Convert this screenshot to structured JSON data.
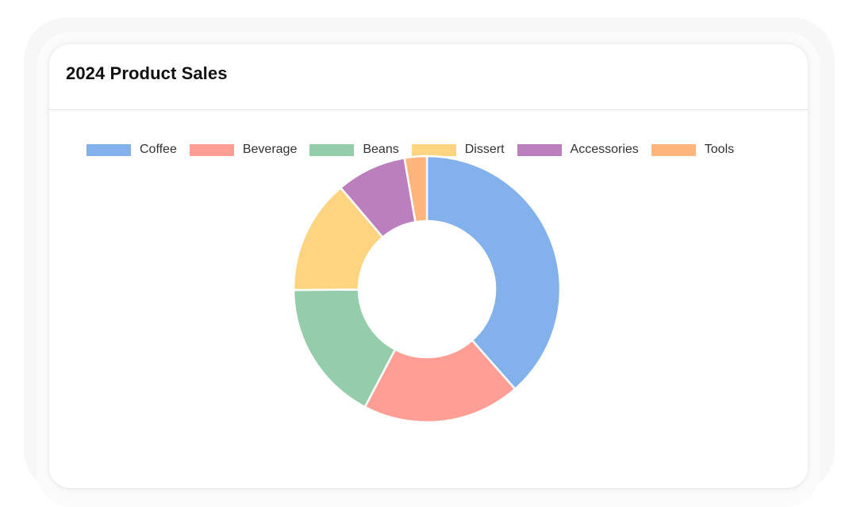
{
  "card": {
    "title": "2024 Product Sales"
  },
  "chart_data": {
    "type": "pie",
    "variant": "doughnut",
    "title": "2024 Product Sales",
    "legend_position": "top",
    "categories": [
      "Coffee",
      "Beverage",
      "Beans",
      "Dissert",
      "Accessories",
      "Tools"
    ],
    "values": [
      38.5,
      19.2,
      17.2,
      13.9,
      8.5,
      2.7
    ],
    "colors": [
      "#82b1ec",
      "#ff9e94",
      "#95cdaa",
      "#fed480",
      "#bb7fbd",
      "#ffb57c"
    ]
  }
}
